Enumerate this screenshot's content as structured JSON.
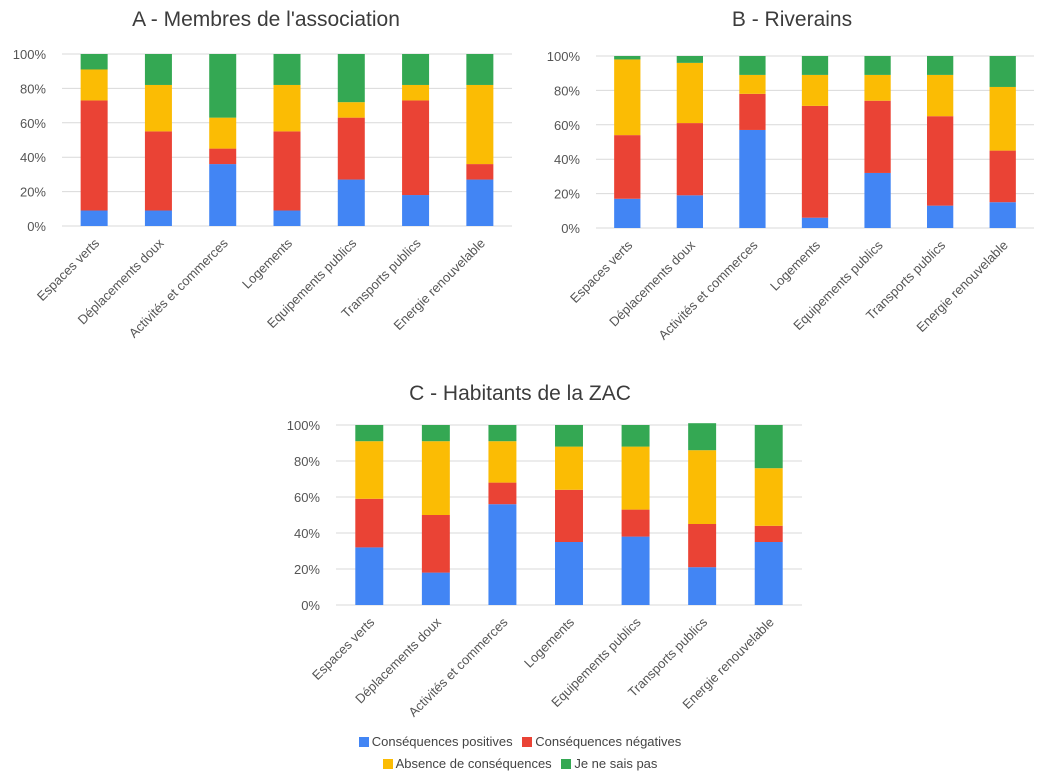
{
  "chart_data": [
    {
      "type": "bar",
      "stacked": "percent",
      "title": "A - Membres de l'association",
      "categories": [
        "Espaces verts",
        "Déplacements doux",
        "Activités et commerces",
        "Logements",
        "Equipements publics",
        "Transports publics",
        "Energie renouvelable"
      ],
      "ylim": [
        0,
        100
      ],
      "yticks": [
        "0%",
        "20%",
        "40%",
        "60%",
        "80%",
        "100%"
      ],
      "grid": true,
      "series": [
        {
          "name": "Conséquences positives",
          "values": [
            9,
            9,
            36,
            9,
            27,
            18,
            27
          ]
        },
        {
          "name": "Conséquences négatives",
          "values": [
            64,
            46,
            9,
            46,
            36,
            55,
            9
          ]
        },
        {
          "name": "Absence de conséquences",
          "values": [
            18,
            27,
            18,
            27,
            9,
            9,
            46
          ]
        },
        {
          "name": "Je ne sais pas",
          "values": [
            9,
            18,
            37,
            18,
            28,
            18,
            18
          ]
        }
      ]
    },
    {
      "type": "bar",
      "stacked": "percent",
      "title": "B - Riverains",
      "categories": [
        "Espaces verts",
        "Déplacements doux",
        "Activités et commerces",
        "Logements",
        "Equipements publics",
        "Transports publics",
        "Energie renouvelable"
      ],
      "ylim": [
        0,
        100
      ],
      "yticks": [
        "0%",
        "20%",
        "40%",
        "60%",
        "80%",
        "100%"
      ],
      "grid": true,
      "series": [
        {
          "name": "Conséquences positives",
          "values": [
            17,
            19,
            57,
            6,
            32,
            13,
            15
          ]
        },
        {
          "name": "Conséquences négatives",
          "values": [
            37,
            42,
            21,
            65,
            42,
            52,
            30
          ]
        },
        {
          "name": "Absence de conséquences",
          "values": [
            44,
            35,
            11,
            18,
            15,
            24,
            37
          ]
        },
        {
          "name": "Je ne sais pas",
          "values": [
            2,
            4,
            11,
            11,
            11,
            11,
            18
          ]
        }
      ]
    },
    {
      "type": "bar",
      "stacked": "percent",
      "title": "C - Habitants de la ZAC",
      "categories": [
        "Espaces verts",
        "Déplacements doux",
        "Activités et commerces",
        "Logements",
        "Equipements publics",
        "Transports publics",
        "Energie renouvelable"
      ],
      "ylim": [
        0,
        100
      ],
      "yticks": [
        "0%",
        "20%",
        "40%",
        "60%",
        "80%",
        "100%"
      ],
      "grid": true,
      "series": [
        {
          "name": "Conséquences positives",
          "values": [
            32,
            18,
            56,
            35,
            38,
            21,
            35
          ]
        },
        {
          "name": "Conséquences négatives",
          "values": [
            27,
            32,
            12,
            29,
            15,
            24,
            9
          ]
        },
        {
          "name": "Absence de conséquences",
          "values": [
            32,
            41,
            23,
            24,
            35,
            41,
            32
          ]
        },
        {
          "name": "Je ne sais pas",
          "values": [
            9,
            9,
            9,
            12,
            12,
            15,
            24
          ]
        }
      ]
    }
  ],
  "legend": {
    "placement": "bottom",
    "items": [
      {
        "label": "Conséquences positives",
        "color": "#4285f4"
      },
      {
        "label": "Conséquences négatives",
        "color": "#ea4335"
      },
      {
        "label": "Absence de conséquences",
        "color": "#fbbc04"
      },
      {
        "label": "Je ne sais pas",
        "color": "#34a853"
      }
    ]
  },
  "colors": [
    "#4285f4",
    "#ea4335",
    "#fbbc04",
    "#34a853"
  ]
}
